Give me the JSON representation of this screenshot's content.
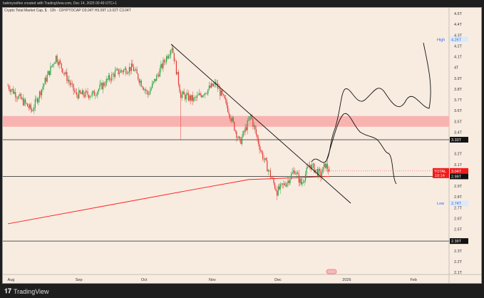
{
  "header": {
    "credit": "babinyoolfee created with TradingView.com, Dec 14, 2025 00:49 UTC+1",
    "legend": "Crypto Total Market Cap, $ · 12h · CRYPTOCAP  O3.04T  H3.09T  L3.02T  C3.04T"
  },
  "footer": {
    "brand": "TradingView"
  },
  "chart_data": {
    "type": "candlestick",
    "title": "Crypto Total Market Cap, $ · 12h · CRYPTOCAP",
    "y_ticks": [
      "4.5T",
      "4.4T",
      "4.3T",
      "4.2T",
      "4.1T",
      "4T",
      "3.9T",
      "3.8T",
      "3.7T",
      "3.6T",
      "3.5T",
      "3.4T",
      "3.2T",
      "3.1T",
      "2.9T",
      "2.8T",
      "2.7T",
      "2.6T",
      "2.5T",
      "2.3T",
      "2.2T",
      "2.1T"
    ],
    "y_tick_values": [
      4.5,
      4.4,
      4.3,
      4.2,
      4.1,
      4.0,
      3.9,
      3.8,
      3.7,
      3.6,
      3.5,
      3.4,
      3.2,
      3.1,
      2.9,
      2.8,
      2.7,
      2.6,
      2.5,
      2.3,
      2.2,
      2.1
    ],
    "ylim": [
      2.07,
      4.57
    ],
    "x_ticks": [
      {
        "label": "Aug",
        "day": 8
      },
      {
        "label": "Sep",
        "day": 39
      },
      {
        "label": "Oct",
        "day": 69
      },
      {
        "label": "Nov",
        "day": 100
      },
      {
        "label": "Dec",
        "day": 130
      },
      {
        "label": "2026",
        "day": 161
      },
      {
        "label": "Feb",
        "day": 192
      }
    ],
    "price_path_keypoints": [
      [
        0,
        3.83
      ],
      [
        11,
        3.6
      ],
      [
        22,
        4.1
      ],
      [
        31,
        3.75
      ],
      [
        39,
        3.75
      ],
      [
        49,
        3.95
      ],
      [
        57,
        4.0
      ],
      [
        64,
        3.75
      ],
      [
        75,
        4.2
      ],
      [
        79,
        3.75
      ],
      [
        85,
        3.7
      ],
      [
        95,
        3.85
      ],
      [
        100,
        3.65
      ],
      [
        106,
        3.3
      ],
      [
        111,
        3.55
      ],
      [
        116,
        3.2
      ],
      [
        121,
        2.95
      ],
      [
        123,
        2.85
      ],
      [
        128,
        2.95
      ],
      [
        131,
        3.05
      ],
      [
        134,
        2.92
      ],
      [
        138,
        3.1
      ],
      [
        143,
        3.0
      ],
      [
        145,
        3.1
      ],
      [
        147,
        3.04
      ]
    ],
    "moving_average": [
      [
        0,
        2.55
      ],
      [
        40,
        2.7
      ],
      [
        80,
        2.85
      ],
      [
        110,
        2.96
      ],
      [
        147,
        2.99
      ]
    ],
    "levels": [
      {
        "label": "3.33T",
        "value": 3.33
      },
      {
        "label": "2.99T",
        "value": 2.99
      },
      {
        "label": "2.39T",
        "value": 2.39
      }
    ],
    "zone": [
      3.45,
      3.55
    ],
    "high": {
      "label": "High",
      "value": "4.26T"
    },
    "low": {
      "label": "Low",
      "value": "2.74T"
    },
    "last": {
      "label": "TOTAL",
      "value": "3.04T",
      "countdown": "10:14"
    },
    "colors": {
      "up": "#26a641",
      "down": "#e53935",
      "ma": "#ff2020",
      "zone": "#f8b3b0"
    }
  }
}
